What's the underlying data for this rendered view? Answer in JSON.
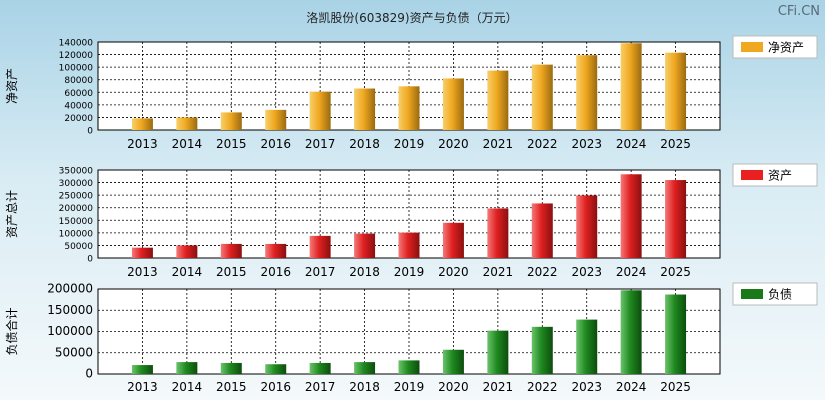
{
  "header": {
    "title": "洛凯股份(603829)资产与负债（万元）",
    "watermark": "CFi.CN"
  },
  "colors": {
    "net_assets": "#f0a820",
    "assets": "#e82020",
    "liabilities": "#1a7a1a"
  },
  "chart_data": [
    {
      "type": "bar",
      "id": "net_assets",
      "ylabel": "净资产",
      "legend": "净资产",
      "categories": [
        "2013",
        "2014",
        "2015",
        "2016",
        "2017",
        "2018",
        "2019",
        "2020",
        "2021",
        "2022",
        "2023",
        "2024",
        "2025"
      ],
      "values": [
        18500,
        20000,
        28000,
        32000,
        61000,
        66000,
        69500,
        82000,
        94500,
        104000,
        119000,
        138000,
        123000
      ],
      "ylim": [
        0,
        140000
      ],
      "yticks": [
        0,
        20000,
        40000,
        60000,
        80000,
        100000,
        120000,
        140000
      ],
      "ytick_labels": [
        "0",
        "20000",
        "40000",
        "60000",
        "80000",
        "100000",
        "120000",
        "140000"
      ]
    },
    {
      "type": "bar",
      "id": "assets",
      "ylabel": "资产总计",
      "legend": "资产",
      "categories": [
        "2013",
        "2014",
        "2015",
        "2016",
        "2017",
        "2018",
        "2019",
        "2020",
        "2021",
        "2022",
        "2023",
        "2024",
        "2025"
      ],
      "values": [
        41000,
        50000,
        56000,
        56000,
        88000,
        97000,
        101000,
        140000,
        197000,
        217000,
        249000,
        333000,
        310000
      ],
      "ylim": [
        0,
        350000
      ],
      "yticks": [
        0,
        50000,
        100000,
        150000,
        200000,
        250000,
        300000,
        350000
      ],
      "ytick_labels": [
        "0",
        "50000",
        "100000",
        "150000",
        "200000",
        "250000",
        "300000",
        "350000"
      ]
    },
    {
      "type": "bar",
      "id": "liabilities",
      "ylabel": "负债合计",
      "legend": "负债",
      "categories": [
        "2013",
        "2014",
        "2015",
        "2016",
        "2017",
        "2018",
        "2019",
        "2020",
        "2021",
        "2022",
        "2023",
        "2024",
        "2025"
      ],
      "values": [
        21000,
        28000,
        26000,
        23000,
        26000,
        28000,
        32000,
        57000,
        102000,
        111000,
        128000,
        197000,
        187000
      ],
      "ylim": [
        0,
        200000
      ],
      "yticks": [
        0,
        50000,
        100000,
        150000,
        200000
      ],
      "ytick_labels": [
        "0",
        "50000",
        "100000",
        "150000",
        "200000"
      ]
    }
  ]
}
